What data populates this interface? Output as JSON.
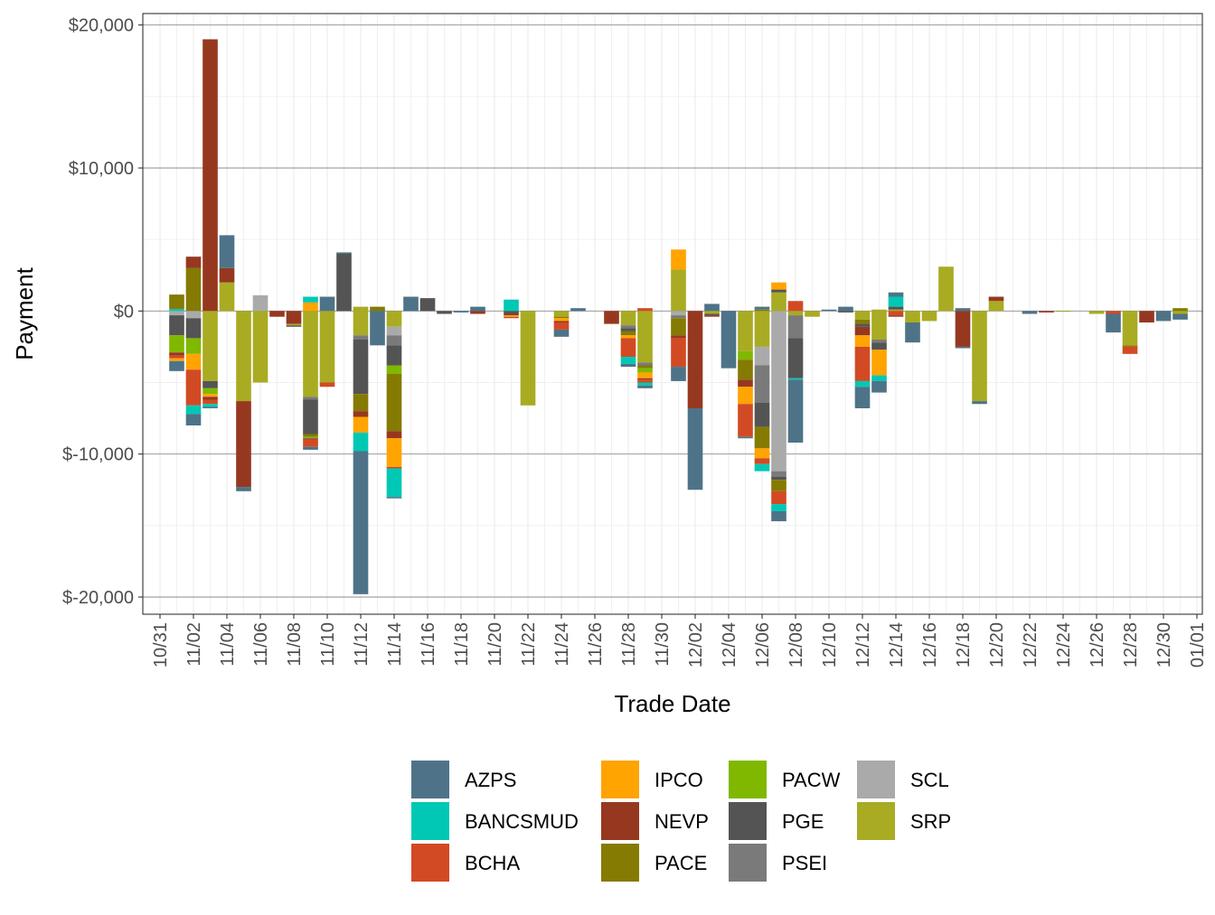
{
  "chart_data": {
    "type": "bar",
    "stacked": true,
    "xlabel": "Trade Date",
    "ylabel": "Payment",
    "ylim": [
      -21200,
      20800
    ],
    "y_ticks": [
      20000,
      10000,
      0,
      -10000,
      -20000
    ],
    "y_tick_labels": [
      "$20,000",
      "$10,000",
      "$0",
      "$-10,000",
      "$-20,000"
    ],
    "x_tick_labels": [
      "10/31",
      "11/02",
      "11/04",
      "11/06",
      "11/08",
      "11/10",
      "11/12",
      "11/14",
      "11/16",
      "11/18",
      "11/20",
      "11/22",
      "11/24",
      "11/26",
      "11/28",
      "11/30",
      "12/02",
      "12/04",
      "12/06",
      "12/08",
      "12/10",
      "12/12",
      "12/14",
      "12/16",
      "12/18",
      "12/20",
      "12/22",
      "12/24",
      "12/26",
      "12/28",
      "12/30",
      "01/01"
    ],
    "grid": true,
    "legend_position": "bottom",
    "series": [
      {
        "name": "AZPS",
        "color": "#4e7388"
      },
      {
        "name": "BANCSMUD",
        "color": "#00c8b4"
      },
      {
        "name": "BCHA",
        "color": "#d24a24"
      },
      {
        "name": "IPCO",
        "color": "#ffa400"
      },
      {
        "name": "NEVP",
        "color": "#963820"
      },
      {
        "name": "PACE",
        "color": "#857a02"
      },
      {
        "name": "PACW",
        "color": "#80b800"
      },
      {
        "name": "PGE",
        "color": "#545454"
      },
      {
        "name": "PSEI",
        "color": "#7a7a7a"
      },
      {
        "name": "SCL",
        "color": "#aaaaaa"
      },
      {
        "name": "SRP",
        "color": "#a9ab22"
      }
    ],
    "days": [
      {
        "date": "11/01",
        "pos": [
          [
            "BANCSMUD",
            150
          ],
          [
            "PACE",
            1000
          ]
        ],
        "neg": [
          [
            "SCL",
            300
          ],
          [
            "PGE",
            1400
          ],
          [
            "PACW",
            1200
          ],
          [
            "NEVP",
            200
          ],
          [
            "BCHA",
            200
          ],
          [
            "IPCO",
            200
          ],
          [
            "AZPS",
            700
          ]
        ]
      },
      {
        "date": "11/02",
        "pos": [
          [
            "PACE",
            3000
          ],
          [
            "NEVP",
            800
          ]
        ],
        "neg": [
          [
            "SCL",
            500
          ],
          [
            "PGE",
            1400
          ],
          [
            "PACW",
            1100
          ],
          [
            "IPCO",
            1100
          ],
          [
            "BCHA",
            2500
          ],
          [
            "BANCSMUD",
            600
          ],
          [
            "AZPS",
            800
          ]
        ]
      },
      {
        "date": "11/03",
        "pos": [
          [
            "NEVP",
            19000
          ]
        ],
        "neg": [
          [
            "SRP",
            4900
          ],
          [
            "PGE",
            500
          ],
          [
            "PACW",
            400
          ],
          [
            "IPCO",
            200
          ],
          [
            "NEVP",
            200
          ],
          [
            "BCHA",
            300
          ],
          [
            "BANCSMUD",
            200
          ],
          [
            "AZPS",
            100
          ]
        ]
      },
      {
        "date": "11/04",
        "pos": [
          [
            "SRP",
            2000
          ],
          [
            "NEVP",
            1000
          ],
          [
            "AZPS",
            2300
          ]
        ],
        "neg": []
      },
      {
        "date": "11/05",
        "pos": [],
        "neg": [
          [
            "SRP",
            6300
          ],
          [
            "NEVP",
            6000
          ],
          [
            "AZPS",
            300
          ]
        ]
      },
      {
        "date": "11/06",
        "pos": [
          [
            "SCL",
            1100
          ]
        ],
        "neg": [
          [
            "SRP",
            5000
          ]
        ]
      },
      {
        "date": "11/07",
        "pos": [],
        "neg": [
          [
            "NEVP",
            400
          ]
        ]
      },
      {
        "date": "11/08",
        "pos": [],
        "neg": [
          [
            "NEVP",
            900
          ],
          [
            "SRP",
            100
          ],
          [
            "PGE",
            100
          ]
        ]
      },
      {
        "date": "11/09",
        "pos": [
          [
            "IPCO",
            600
          ],
          [
            "BANCSMUD",
            400
          ]
        ],
        "neg": [
          [
            "SRP",
            6000
          ],
          [
            "PSEI",
            200
          ],
          [
            "PGE",
            2400
          ],
          [
            "PACE",
            200
          ],
          [
            "PACW",
            100
          ],
          [
            "NEVP",
            100
          ],
          [
            "BCHA",
            500
          ],
          [
            "AZPS",
            200
          ]
        ]
      },
      {
        "date": "11/10",
        "pos": [
          [
            "AZPS",
            1000
          ]
        ],
        "neg": [
          [
            "SRP",
            5000
          ],
          [
            "BCHA",
            300
          ]
        ]
      },
      {
        "date": "11/11",
        "pos": [
          [
            "PGE",
            4000
          ],
          [
            "AZPS",
            100
          ]
        ],
        "neg": []
      },
      {
        "date": "11/12",
        "pos": [
          [
            "SRP",
            300
          ]
        ],
        "neg": [
          [
            "SRP",
            1700
          ],
          [
            "PSEI",
            300
          ],
          [
            "PGE",
            3800
          ],
          [
            "PACE",
            1200
          ],
          [
            "NEVP",
            400
          ],
          [
            "IPCO",
            1100
          ],
          [
            "BANCSMUD",
            1300
          ],
          [
            "AZPS",
            10000
          ]
        ]
      },
      {
        "date": "11/13",
        "pos": [
          [
            "PACE",
            300
          ]
        ],
        "neg": [
          [
            "AZPS",
            2400
          ]
        ]
      },
      {
        "date": "11/14",
        "pos": [],
        "neg": [
          [
            "SRP",
            1100
          ],
          [
            "SCL",
            600
          ],
          [
            "PSEI",
            700
          ],
          [
            "PGE",
            1400
          ],
          [
            "PACW",
            600
          ],
          [
            "PACE",
            4000
          ],
          [
            "NEVP",
            500
          ],
          [
            "IPCO",
            2000
          ],
          [
            "BCHA",
            100
          ],
          [
            "BANCSMUD",
            2000
          ],
          [
            "AZPS",
            100
          ]
        ]
      },
      {
        "date": "11/15",
        "pos": [
          [
            "AZPS",
            1000
          ]
        ],
        "neg": []
      },
      {
        "date": "11/16",
        "pos": [
          [
            "PGE",
            900
          ]
        ],
        "neg": []
      },
      {
        "date": "11/17",
        "pos": [],
        "neg": [
          [
            "PGE",
            200
          ]
        ]
      },
      {
        "date": "11/18",
        "pos": [],
        "neg": [
          [
            "AZPS",
            100
          ]
        ]
      },
      {
        "date": "11/19",
        "pos": [
          [
            "AZPS",
            300
          ]
        ],
        "neg": [
          [
            "NEVP",
            200
          ]
        ]
      },
      {
        "date": "11/21",
        "pos": [
          [
            "BANCSMUD",
            800
          ]
        ],
        "neg": [
          [
            "PGE",
            200
          ],
          [
            "NEVP",
            100
          ],
          [
            "IPCO",
            100
          ],
          [
            "BCHA",
            100
          ]
        ]
      },
      {
        "date": "11/22",
        "pos": [],
        "neg": [
          [
            "SRP",
            6600
          ]
        ]
      },
      {
        "date": "11/24",
        "pos": [],
        "neg": [
          [
            "SRP",
            400
          ],
          [
            "PACE",
            100
          ],
          [
            "IPCO",
            200
          ],
          [
            "NEVP",
            100
          ],
          [
            "BCHA",
            500
          ],
          [
            "AZPS",
            500
          ]
        ]
      },
      {
        "date": "11/25",
        "pos": [
          [
            "AZPS",
            200
          ]
        ],
        "neg": []
      },
      {
        "date": "11/27",
        "pos": [],
        "neg": [
          [
            "NEVP",
            900
          ]
        ]
      },
      {
        "date": "11/28",
        "pos": [],
        "neg": [
          [
            "SRP",
            1000
          ],
          [
            "PSEI",
            200
          ],
          [
            "PGE",
            200
          ],
          [
            "PACE",
            300
          ],
          [
            "IPCO",
            200
          ],
          [
            "BCHA",
            1300
          ],
          [
            "BANCSMUD",
            500
          ],
          [
            "AZPS",
            200
          ]
        ]
      },
      {
        "date": "11/29",
        "pos": [
          [
            "BCHA",
            200
          ]
        ],
        "neg": [
          [
            "SRP",
            3600
          ],
          [
            "PSEI",
            200
          ],
          [
            "PACE",
            200
          ],
          [
            "PACW",
            300
          ],
          [
            "IPCO",
            400
          ],
          [
            "NEVP",
            100
          ],
          [
            "BCHA",
            200
          ],
          [
            "BANCSMUD",
            200
          ],
          [
            "AZPS",
            200
          ]
        ]
      },
      {
        "date": "12/01",
        "pos": [
          [
            "SRP",
            2900
          ],
          [
            "IPCO",
            1400
          ]
        ],
        "neg": [
          [
            "SCL",
            300
          ],
          [
            "PSEI",
            200
          ],
          [
            "PACE",
            1200
          ],
          [
            "NEVP",
            200
          ],
          [
            "BCHA",
            2000
          ],
          [
            "AZPS",
            1000
          ]
        ]
      },
      {
        "date": "12/02",
        "pos": [],
        "neg": [
          [
            "NEVP",
            6800
          ],
          [
            "AZPS",
            5700
          ]
        ]
      },
      {
        "date": "12/03",
        "pos": [
          [
            "AZPS",
            500
          ]
        ],
        "neg": [
          [
            "SRP",
            200
          ],
          [
            "PGE",
            100
          ],
          [
            "NEVP",
            100
          ]
        ]
      },
      {
        "date": "12/04",
        "pos": [],
        "neg": [
          [
            "AZPS",
            4000
          ]
        ]
      },
      {
        "date": "12/05",
        "pos": [],
        "neg": [
          [
            "SRP",
            2800
          ],
          [
            "PACW",
            600
          ],
          [
            "PACE",
            1400
          ],
          [
            "NEVP",
            500
          ],
          [
            "IPCO",
            1200
          ],
          [
            "BCHA",
            2300
          ],
          [
            "AZPS",
            100
          ]
        ]
      },
      {
        "date": "12/06",
        "pos": [
          [
            "PACE",
            100
          ],
          [
            "AZPS",
            200
          ]
        ],
        "neg": [
          [
            "SRP",
            2500
          ],
          [
            "SCL",
            1300
          ],
          [
            "PSEI",
            2600
          ],
          [
            "PGE",
            1700
          ],
          [
            "PACE",
            1500
          ],
          [
            "IPCO",
            700
          ],
          [
            "BCHA",
            400
          ],
          [
            "BANCSMUD",
            500
          ]
        ]
      },
      {
        "date": "12/07",
        "pos": [
          [
            "SRP",
            1300
          ],
          [
            "PGE",
            200
          ],
          [
            "IPCO",
            500
          ]
        ],
        "neg": [
          [
            "SCL",
            11200
          ],
          [
            "PSEI",
            400
          ],
          [
            "PGE",
            200
          ],
          [
            "PACE",
            800
          ],
          [
            "BCHA",
            900
          ],
          [
            "BANCSMUD",
            500
          ],
          [
            "AZPS",
            700
          ]
        ]
      },
      {
        "date": "12/08",
        "pos": [
          [
            "BCHA",
            700
          ]
        ],
        "neg": [
          [
            "SRP",
            300
          ],
          [
            "PSEI",
            1600
          ],
          [
            "PGE",
            2800
          ],
          [
            "BANCSMUD",
            100
          ],
          [
            "AZPS",
            4400
          ]
        ]
      },
      {
        "date": "12/09",
        "pos": [],
        "neg": [
          [
            "SRP",
            400
          ]
        ]
      },
      {
        "date": "12/10",
        "pos": [
          [
            "AZPS",
            100
          ]
        ],
        "neg": []
      },
      {
        "date": "12/11",
        "pos": [
          [
            "AZPS",
            300
          ]
        ],
        "neg": [
          [
            "PGE",
            100
          ]
        ]
      },
      {
        "date": "12/12",
        "pos": [],
        "neg": [
          [
            "SRP",
            600
          ],
          [
            "PACE",
            300
          ],
          [
            "PGE",
            200
          ],
          [
            "NEVP",
            600
          ],
          [
            "IPCO",
            800
          ],
          [
            "BCHA",
            2400
          ],
          [
            "BANCSMUD",
            400
          ],
          [
            "AZPS",
            1500
          ]
        ]
      },
      {
        "date": "12/13",
        "pos": [
          [
            "SRP",
            100
          ]
        ],
        "neg": [
          [
            "SRP",
            2000
          ],
          [
            "PSEI",
            200
          ],
          [
            "PGE",
            500
          ],
          [
            "IPCO",
            1800
          ],
          [
            "BANCSMUD",
            400
          ],
          [
            "AZPS",
            800
          ]
        ]
      },
      {
        "date": "12/14",
        "pos": [
          [
            "SRP",
            100
          ],
          [
            "PGE",
            200
          ],
          [
            "BANCSMUD",
            700
          ],
          [
            "AZPS",
            300
          ]
        ],
        "neg": [
          [
            "BCHA",
            300
          ],
          [
            "NEVP",
            100
          ]
        ]
      },
      {
        "date": "12/15",
        "pos": [],
        "neg": [
          [
            "SRP",
            800
          ],
          [
            "AZPS",
            1400
          ]
        ]
      },
      {
        "date": "12/16",
        "pos": [],
        "neg": [
          [
            "SRP",
            700
          ]
        ]
      },
      {
        "date": "12/17",
        "pos": [
          [
            "SRP",
            3100
          ]
        ],
        "neg": []
      },
      {
        "date": "12/18",
        "pos": [
          [
            "AZPS",
            200
          ]
        ],
        "neg": [
          [
            "NEVP",
            2500
          ],
          [
            "AZPS",
            100
          ]
        ]
      },
      {
        "date": "12/19",
        "pos": [],
        "neg": [
          [
            "SRP",
            6300
          ],
          [
            "AZPS",
            200
          ]
        ]
      },
      {
        "date": "12/20",
        "pos": [
          [
            "SRP",
            700
          ],
          [
            "NEVP",
            300
          ]
        ],
        "neg": []
      },
      {
        "date": "12/22",
        "pos": [],
        "neg": [
          [
            "AZPS",
            200
          ]
        ]
      },
      {
        "date": "12/23",
        "pos": [],
        "neg": [
          [
            "NEVP",
            100
          ]
        ]
      },
      {
        "date": "12/24",
        "pos": [],
        "neg": [
          [
            "SRP",
            50
          ]
        ]
      },
      {
        "date": "12/26",
        "pos": [],
        "neg": [
          [
            "SRP",
            200
          ]
        ]
      },
      {
        "date": "12/27",
        "pos": [],
        "neg": [
          [
            "BCHA",
            200
          ],
          [
            "AZPS",
            1300
          ]
        ]
      },
      {
        "date": "12/28",
        "pos": [],
        "neg": [
          [
            "SRP",
            2400
          ],
          [
            "PACE",
            100
          ],
          [
            "BCHA",
            500
          ]
        ]
      },
      {
        "date": "12/29",
        "pos": [],
        "neg": [
          [
            "NEVP",
            800
          ]
        ]
      },
      {
        "date": "12/30",
        "pos": [],
        "neg": [
          [
            "AZPS",
            700
          ]
        ]
      },
      {
        "date": "12/31",
        "pos": [
          [
            "PACE",
            200
          ]
        ],
        "neg": [
          [
            "SRP",
            200
          ],
          [
            "AZPS",
            400
          ]
        ]
      }
    ]
  }
}
